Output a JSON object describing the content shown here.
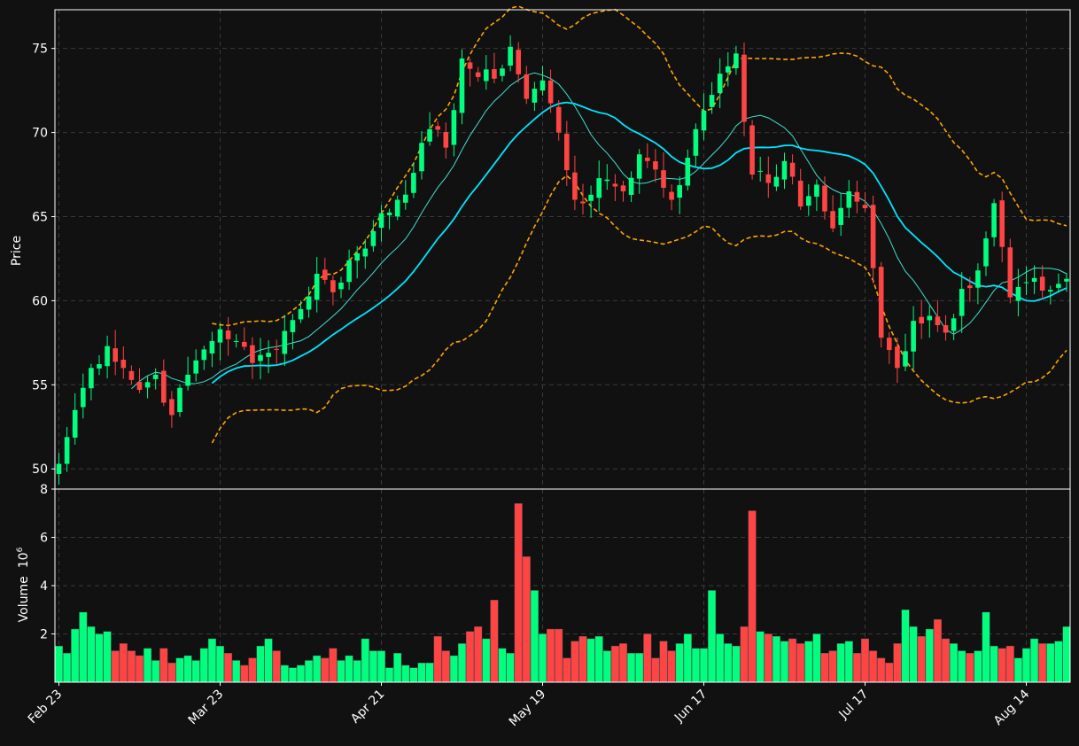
{
  "chart_data": {
    "type": "candlestick",
    "colors": {
      "background": "#111111",
      "grid": "#3a3a3a",
      "up": "#00ff7f",
      "down": "#ff4444",
      "sma_fast": "#40e0d0",
      "sma_slow": "#00e5ff",
      "bollinger": "#ffa500",
      "axis": "#ffffff"
    },
    "price_panel": {
      "ylabel": "Price",
      "ylim": [
        48.8,
        77.3
      ],
      "yticks": [
        50,
        55,
        60,
        65,
        70,
        75
      ]
    },
    "volume_panel": {
      "ylabel": "Volume",
      "ylabel_exponent": "10",
      "ylabel_power": "6",
      "ylim": [
        0,
        8
      ],
      "yticks": [
        2,
        4,
        6,
        8
      ]
    },
    "x_ticks": [
      {
        "index": 0,
        "label": "Feb 23"
      },
      {
        "index": 20,
        "label": "Mar 23"
      },
      {
        "index": 40,
        "label": "Apr 21"
      },
      {
        "index": 60,
        "label": "May 19"
      },
      {
        "index": 80,
        "label": "Jun 17"
      },
      {
        "index": 100,
        "label": "Jul 17"
      },
      {
        "index": 120,
        "label": "Aug 14"
      }
    ],
    "anchors": {
      "close_indices": [
        0,
        2,
        4,
        6,
        8,
        10,
        12,
        14,
        16,
        18,
        20,
        22,
        24,
        26,
        28,
        30,
        32,
        34,
        36,
        38,
        40,
        42,
        44,
        46,
        48,
        50,
        52,
        54,
        56,
        58,
        60,
        62,
        64,
        66,
        68,
        70,
        72,
        74,
        76,
        78,
        80,
        82,
        84,
        86,
        88,
        90,
        92,
        94,
        96,
        98,
        100,
        102,
        104,
        106,
        108,
        110,
        112,
        114,
        116,
        118,
        120,
        122,
        125
      ],
      "close_values": [
        50.3,
        53.5,
        56.0,
        57.3,
        56.0,
        54.7,
        55.6,
        53.2,
        55.6,
        57.1,
        58.3,
        57.6,
        56.3,
        56.9,
        58.2,
        59.5,
        61.6,
        60.5,
        62.4,
        63.1,
        65.2,
        66.0,
        67.6,
        70.2,
        69.1,
        74.4,
        73.3,
        73.2,
        75.1,
        72.0,
        73.1,
        70.0,
        66.0,
        66.3,
        67.2,
        66.5,
        68.7,
        67.8,
        66.0,
        68.5,
        71.3,
        73.5,
        74.7,
        67.5,
        67.0,
        68.3,
        65.6,
        66.9,
        64.3,
        66.5,
        65.5,
        57.8,
        56.0,
        58.8,
        59.1,
        58.1,
        60.7,
        61.8,
        65.8,
        60.2,
        61.1,
        60.6,
        61.3
      ]
    },
    "volume_millions": [
      1.5,
      1.2,
      2.2,
      2.9,
      2.3,
      2.0,
      2.1,
      1.3,
      1.6,
      1.3,
      1.1,
      1.4,
      0.9,
      1.4,
      0.8,
      1.0,
      1.1,
      0.9,
      1.4,
      1.8,
      1.5,
      1.2,
      0.9,
      0.7,
      1.0,
      1.5,
      1.8,
      1.3,
      0.7,
      0.6,
      0.7,
      0.9,
      1.1,
      1.0,
      1.4,
      0.9,
      1.1,
      0.9,
      1.8,
      1.3,
      1.3,
      0.6,
      1.2,
      0.7,
      0.6,
      0.8,
      0.8,
      1.9,
      1.3,
      1.1,
      1.6,
      2.1,
      2.3,
      1.8,
      3.4,
      1.4,
      1.2,
      7.4,
      5.2,
      3.8,
      2.0,
      2.2,
      2.2,
      1.0,
      1.7,
      1.9,
      1.8,
      1.9,
      1.3,
      1.5,
      1.6,
      1.2,
      1.2,
      2.0,
      1.0,
      1.7,
      1.3,
      1.6,
      2.0,
      1.4,
      1.4,
      3.8,
      2.0,
      1.6,
      1.5,
      2.3,
      7.1,
      2.1,
      2.0,
      1.9,
      1.7,
      1.8,
      1.6,
      1.7,
      2.0,
      1.2,
      1.3,
      1.6,
      1.7,
      1.2,
      1.8,
      1.3,
      1.0,
      0.8,
      1.6,
      3.0,
      2.3,
      1.9,
      2.2,
      2.6,
      1.8,
      1.6,
      1.3,
      1.2,
      1.3,
      2.9,
      1.5,
      1.4,
      1.5,
      1.0,
      1.4,
      1.8,
      1.6,
      1.6,
      1.7,
      2.3
    ]
  }
}
